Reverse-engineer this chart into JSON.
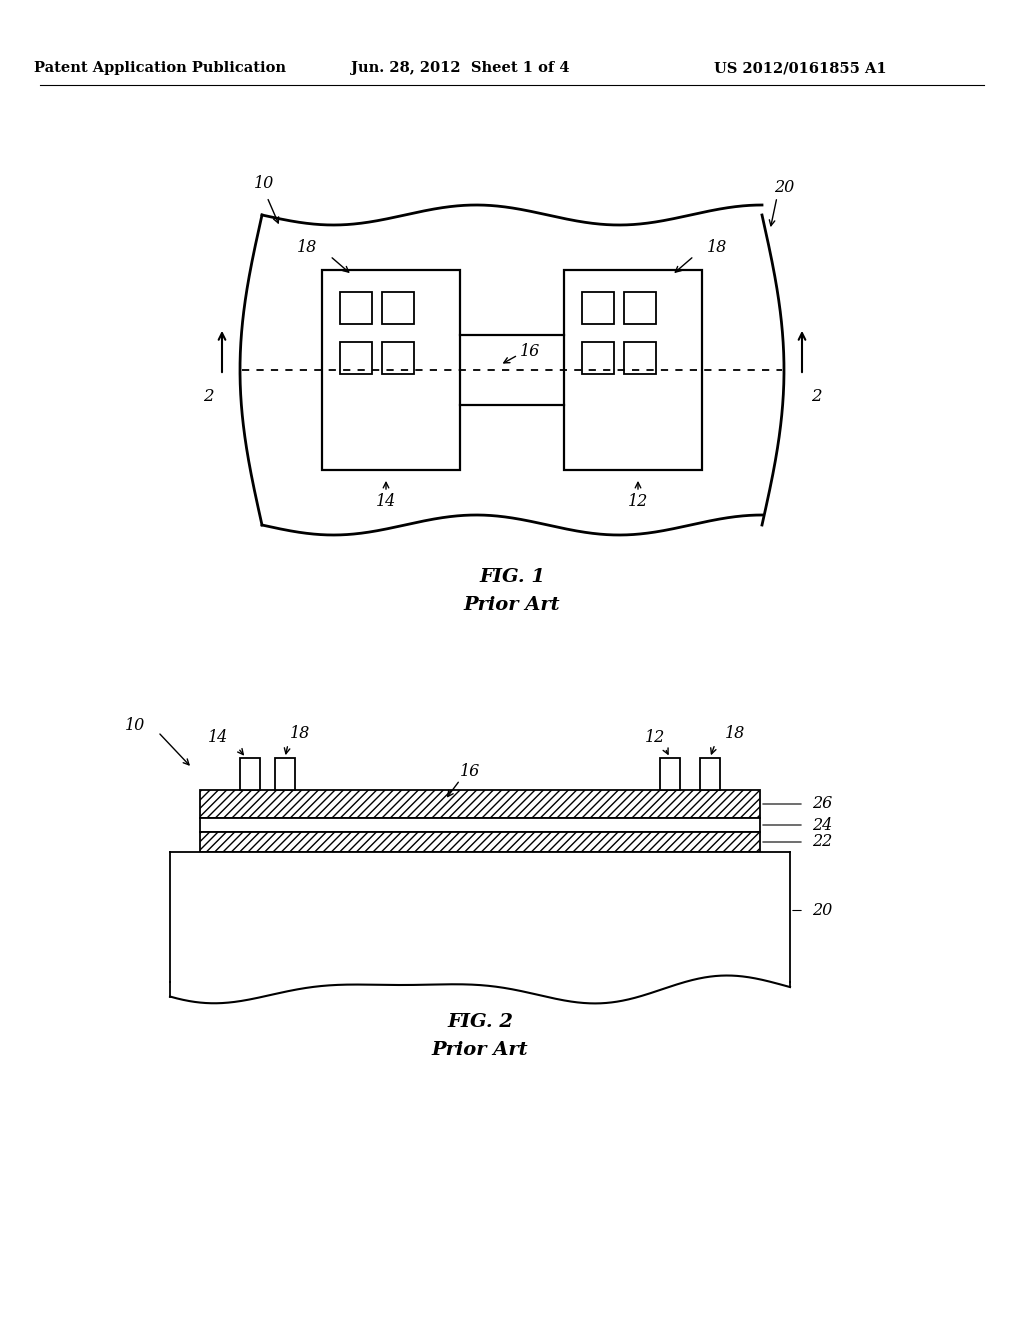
{
  "bg_color": "#ffffff",
  "header_left": "Patent Application Publication",
  "header_mid": "Jun. 28, 2012  Sheet 1 of 4",
  "header_right": "US 2012/0161855 A1",
  "fig1_caption": "FIG. 1",
  "fig1_subcaption": "Prior Art",
  "fig2_caption": "FIG. 2",
  "fig2_subcaption": "Prior Art",
  "line_color": "#000000"
}
